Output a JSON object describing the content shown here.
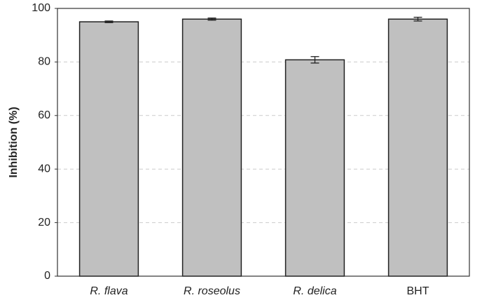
{
  "chart_data": {
    "type": "bar",
    "y_label": "Inhibition (%)",
    "categories": [
      "R. flava",
      "R. roseolus",
      "R. delica",
      "BHT"
    ],
    "values": [
      95.0,
      96.0,
      80.8,
      96.0
    ],
    "errors": [
      0.3,
      0.4,
      1.2,
      0.7
    ],
    "color": "#c0c0c0",
    "ylim": [
      0,
      100
    ],
    "yticks": [
      0,
      20,
      40,
      60,
      80,
      100
    ],
    "grid": true
  }
}
